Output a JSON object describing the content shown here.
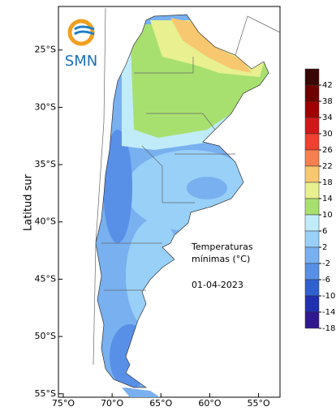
{
  "logo": {
    "text": "SMN"
  },
  "map": {
    "y_axis_label": "Latitud sur",
    "lon_lim": [
      -75.5,
      -52.8
    ],
    "lat_lim": [
      -55.3,
      -21.2
    ],
    "lat_ticks": [
      {
        "value": -25,
        "label": "25°S"
      },
      {
        "value": -30,
        "label": "30°S"
      },
      {
        "value": -35,
        "label": "35°S"
      },
      {
        "value": -40,
        "label": "40°S"
      },
      {
        "value": -45,
        "label": "45°S"
      },
      {
        "value": -50,
        "label": "50°S"
      },
      {
        "value": -55,
        "label": "55°S"
      }
    ],
    "lon_ticks": [
      {
        "value": -75,
        "label": "75°O"
      },
      {
        "value": -70,
        "label": "70°O"
      },
      {
        "value": -65,
        "label": "65°O"
      },
      {
        "value": -60,
        "label": "60°O"
      },
      {
        "value": -55,
        "label": "55°O"
      }
    ],
    "annotation": [
      "Temperaturas",
      "mínimas (°C)",
      "01-04-2023"
    ]
  },
  "colorbar": {
    "ticks": [
      42,
      38,
      34,
      30,
      26,
      22,
      18,
      14,
      10,
      6,
      2,
      -2,
      -6,
      -10,
      -14,
      -18
    ],
    "colors": [
      "#3a0606",
      "#6e0000",
      "#a00000",
      "#d01818",
      "#f04030",
      "#f88050",
      "#f8c870",
      "#e8f090",
      "#a8e070",
      "#c0ecfa",
      "#98d0f8",
      "#78b0f0",
      "#5890e8",
      "#3060d0",
      "#2030b0",
      "#301890"
    ]
  }
}
